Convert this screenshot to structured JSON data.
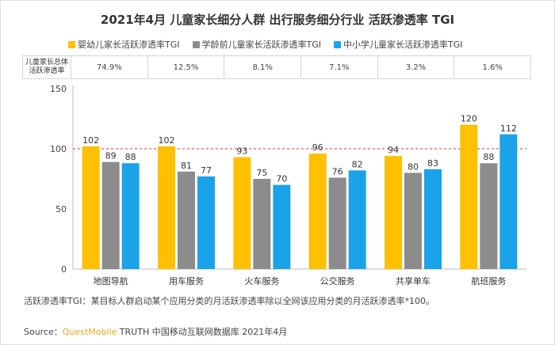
{
  "title": "2021年4月 儿童家长细分人群 出行服务细分行业 活跃渗透率 TGI",
  "row_table": {
    "header": "儿童家长总体活跃渗透率",
    "values": [
      "74.9%",
      "12.5%",
      "8.1%",
      "7.1%",
      "3.2%",
      "1.6%"
    ]
  },
  "note": "活跃渗透率TGI：某目标人群启动某个应用分类的月活跃渗透率除以全网该应用分类的月活跃渗透率*100。",
  "source": {
    "prefix": "Source：",
    "brand": "QuestMobile",
    "suffix": " TRUTH 中国移动互联网数据库 2021年4月"
  },
  "colors": {
    "series1": "#FFC000",
    "series2": "#8C8C8C",
    "series3": "#1AA3E8",
    "reference_line": "#e03030"
  },
  "chart_data": {
    "type": "bar",
    "categories": [
      "地图导航",
      "用车服务",
      "火车服务",
      "公交服务",
      "共享单车",
      "航班服务"
    ],
    "series": [
      {
        "name": "婴幼儿家长活跃渗透率TGI",
        "values": [
          102,
          102,
          93,
          96,
          94,
          120
        ]
      },
      {
        "name": "学龄前儿童家长活跃渗透率TGI",
        "values": [
          89,
          81,
          75,
          76,
          80,
          88
        ]
      },
      {
        "name": "中小学儿童家长活跃渗透率TGI",
        "values": [
          88,
          77,
          70,
          82,
          83,
          112
        ]
      }
    ],
    "yticks": [
      0,
      50,
      100,
      150
    ],
    "ylim": [
      0,
      150
    ],
    "reference_value": 100,
    "legend_position": "top"
  }
}
